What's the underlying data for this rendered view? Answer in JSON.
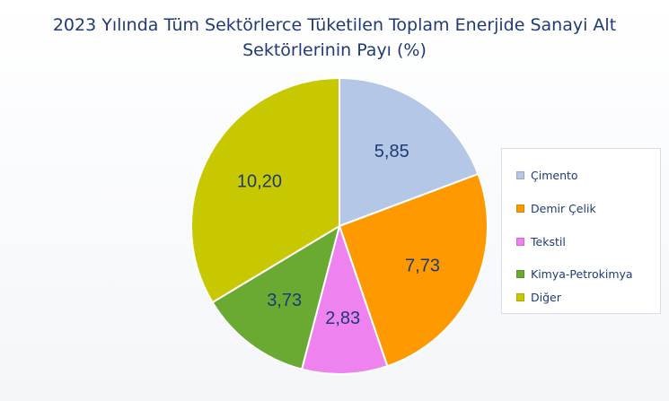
{
  "chart_data": {
    "type": "pie",
    "title_line1": "2023 Yılında Tüm Sektörlerce Tüketilen Toplam Enerjide Sanayi Alt",
    "title_line2": "Sektörlerinin Payı (%)",
    "categories": [
      "Çimento",
      "Demir Çelik",
      "Tekstil",
      "Kimya-Petrokimya",
      "Diğer"
    ],
    "values": [
      5.85,
      7.73,
      2.83,
      3.73,
      10.2
    ],
    "data_labels": [
      "5,85",
      "7,73",
      "2,83",
      "3,73",
      "10,20"
    ],
    "colors": [
      "#b4c7e7",
      "#ff9900",
      "#ee82ee",
      "#6aaa32",
      "#c8c800"
    ],
    "start_angle": "12 o'clock, clockwise",
    "legend_position": "right"
  }
}
